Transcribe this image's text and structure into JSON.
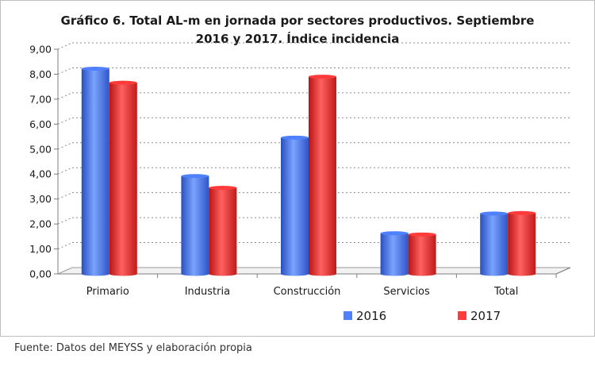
{
  "chart_data": {
    "type": "bar",
    "title_lines": [
      "Gráfico 6. Total AL-m en jornada por sectores productivos. Septiembre",
      "2016 y 2017.  Índice incidencia"
    ],
    "categories": [
      "Primario",
      "Industria",
      "Construcción",
      "Servicios",
      "Total"
    ],
    "series": [
      {
        "name": "2016",
        "values": [
          8.22,
          3.92,
          5.46,
          1.63,
          2.42
        ],
        "color": "#4f81ff"
      },
      {
        "name": "2017",
        "values": [
          7.66,
          3.45,
          7.9,
          1.58,
          2.44
        ],
        "color": "#ff3b3b"
      }
    ],
    "ylim": [
      0,
      9
    ],
    "y_ticks": [
      "0,00",
      "1,00",
      "2,00",
      "3,00",
      "4,00",
      "5,00",
      "6,00",
      "7,00",
      "8,00",
      "9,00"
    ],
    "grid": true,
    "legend_position": "bottom-right",
    "xlabel": "",
    "ylabel": ""
  },
  "source_note": "Fuente: Datos del MEYSS y elaboración propia"
}
